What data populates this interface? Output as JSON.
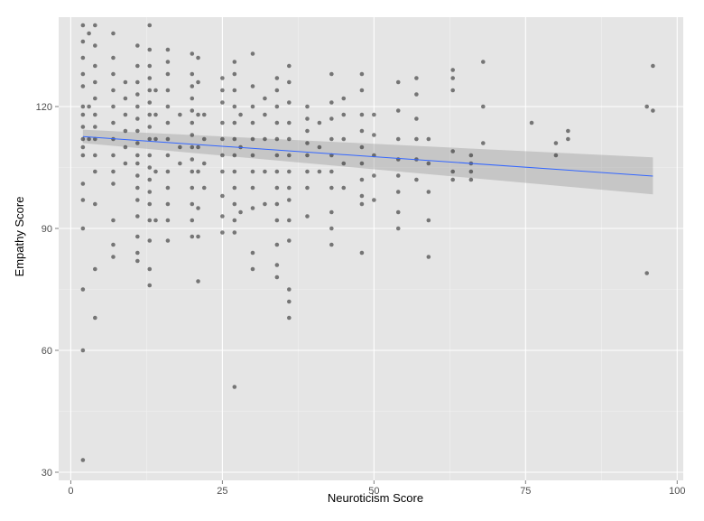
{
  "chart_data": {
    "type": "scatter",
    "title": "",
    "xlabel": "Neuroticism Score",
    "ylabel": "Empathy Score",
    "xlim": [
      -2,
      101
    ],
    "ylim": [
      28,
      142
    ],
    "x_ticks": [
      0,
      25,
      50,
      75,
      100
    ],
    "y_ticks": [
      30,
      60,
      90,
      120
    ],
    "x_tick_labels": [
      "0",
      "25",
      "50",
      "75",
      "100"
    ],
    "y_tick_labels": [
      "30",
      "60",
      "90",
      "120"
    ],
    "grid": true,
    "legend": "none",
    "colors": {
      "panel": "#e5e5e5",
      "grid_major": "#ffffff",
      "grid_minor": "#f2f2f2",
      "points": "#1a1a1a",
      "fit_line": "#3366ff",
      "ribbon": "#999999"
    },
    "fit": {
      "method": "linear",
      "x": [
        2,
        96
      ],
      "y": [
        112.6,
        102.9
      ],
      "ci_lower": [
        111.0,
        98.4
      ],
      "ci_upper": [
        114.3,
        107.5
      ]
    },
    "points": [
      [
        2,
        33
      ],
      [
        2,
        60
      ],
      [
        2,
        75
      ],
      [
        2,
        90
      ],
      [
        2,
        97
      ],
      [
        2,
        101
      ],
      [
        2,
        108
      ],
      [
        2,
        110
      ],
      [
        2,
        112
      ],
      [
        2,
        115
      ],
      [
        2,
        118
      ],
      [
        2,
        120
      ],
      [
        2,
        125
      ],
      [
        2,
        128
      ],
      [
        2,
        132
      ],
      [
        2,
        136
      ],
      [
        2,
        140
      ],
      [
        3,
        112
      ],
      [
        3,
        120
      ],
      [
        3,
        138
      ],
      [
        4,
        68
      ],
      [
        4,
        80
      ],
      [
        4,
        96
      ],
      [
        4,
        104
      ],
      [
        4,
        108
      ],
      [
        4,
        112
      ],
      [
        4,
        115
      ],
      [
        4,
        118
      ],
      [
        4,
        122
      ],
      [
        4,
        126
      ],
      [
        4,
        130
      ],
      [
        4,
        135
      ],
      [
        4,
        140
      ],
      [
        7,
        83
      ],
      [
        7,
        86
      ],
      [
        7,
        92
      ],
      [
        7,
        101
      ],
      [
        7,
        104
      ],
      [
        7,
        108
      ],
      [
        7,
        112
      ],
      [
        7,
        116
      ],
      [
        7,
        120
      ],
      [
        7,
        124
      ],
      [
        7,
        128
      ],
      [
        7,
        132
      ],
      [
        7,
        138
      ],
      [
        9,
        106
      ],
      [
        9,
        110
      ],
      [
        9,
        114
      ],
      [
        9,
        118
      ],
      [
        9,
        122
      ],
      [
        9,
        126
      ],
      [
        11,
        82
      ],
      [
        11,
        84
      ],
      [
        11,
        88
      ],
      [
        11,
        93
      ],
      [
        11,
        97
      ],
      [
        11,
        100
      ],
      [
        11,
        103
      ],
      [
        11,
        106
      ],
      [
        11,
        108
      ],
      [
        11,
        111
      ],
      [
        11,
        114
      ],
      [
        11,
        117
      ],
      [
        11,
        120
      ],
      [
        11,
        123
      ],
      [
        11,
        126
      ],
      [
        11,
        130
      ],
      [
        11,
        135
      ],
      [
        13,
        76
      ],
      [
        13,
        80
      ],
      [
        13,
        87
      ],
      [
        13,
        92
      ],
      [
        13,
        96
      ],
      [
        13,
        99
      ],
      [
        13,
        102
      ],
      [
        13,
        105
      ],
      [
        13,
        108
      ],
      [
        13,
        112
      ],
      [
        13,
        115
      ],
      [
        13,
        118
      ],
      [
        13,
        121
      ],
      [
        13,
        124
      ],
      [
        13,
        127
      ],
      [
        13,
        130
      ],
      [
        13,
        134
      ],
      [
        13,
        140
      ],
      [
        14,
        92
      ],
      [
        14,
        104
      ],
      [
        14,
        112
      ],
      [
        14,
        118
      ],
      [
        14,
        124
      ],
      [
        16,
        87
      ],
      [
        16,
        92
      ],
      [
        16,
        96
      ],
      [
        16,
        100
      ],
      [
        16,
        104
      ],
      [
        16,
        108
      ],
      [
        16,
        112
      ],
      [
        16,
        116
      ],
      [
        16,
        120
      ],
      [
        16,
        124
      ],
      [
        16,
        128
      ],
      [
        16,
        131
      ],
      [
        16,
        134
      ],
      [
        18,
        106
      ],
      [
        18,
        110
      ],
      [
        18,
        118
      ],
      [
        20,
        88
      ],
      [
        20,
        92
      ],
      [
        20,
        96
      ],
      [
        20,
        100
      ],
      [
        20,
        104
      ],
      [
        20,
        107
      ],
      [
        20,
        110
      ],
      [
        20,
        113
      ],
      [
        20,
        116
      ],
      [
        20,
        119
      ],
      [
        20,
        122
      ],
      [
        20,
        125
      ],
      [
        20,
        128
      ],
      [
        20,
        133
      ],
      [
        21,
        77
      ],
      [
        21,
        88
      ],
      [
        21,
        95
      ],
      [
        21,
        104
      ],
      [
        21,
        110
      ],
      [
        21,
        118
      ],
      [
        21,
        126
      ],
      [
        21,
        132
      ],
      [
        22,
        100
      ],
      [
        22,
        106
      ],
      [
        22,
        112
      ],
      [
        22,
        118
      ],
      [
        25,
        89
      ],
      [
        25,
        93
      ],
      [
        25,
        98
      ],
      [
        25,
        104
      ],
      [
        25,
        108
      ],
      [
        25,
        112
      ],
      [
        25,
        116
      ],
      [
        25,
        121
      ],
      [
        25,
        124
      ],
      [
        25,
        127
      ],
      [
        27,
        51
      ],
      [
        27,
        89
      ],
      [
        27,
        92
      ],
      [
        27,
        96
      ],
      [
        27,
        100
      ],
      [
        27,
        104
      ],
      [
        27,
        108
      ],
      [
        27,
        112
      ],
      [
        27,
        116
      ],
      [
        27,
        120
      ],
      [
        27,
        124
      ],
      [
        27,
        128
      ],
      [
        27,
        131
      ],
      [
        28,
        94
      ],
      [
        28,
        110
      ],
      [
        28,
        118
      ],
      [
        30,
        80
      ],
      [
        30,
        84
      ],
      [
        30,
        95
      ],
      [
        30,
        100
      ],
      [
        30,
        104
      ],
      [
        30,
        108
      ],
      [
        30,
        112
      ],
      [
        30,
        116
      ],
      [
        30,
        120
      ],
      [
        30,
        125
      ],
      [
        30,
        133
      ],
      [
        32,
        96
      ],
      [
        32,
        104
      ],
      [
        32,
        112
      ],
      [
        32,
        118
      ],
      [
        32,
        122
      ],
      [
        34,
        78
      ],
      [
        34,
        81
      ],
      [
        34,
        86
      ],
      [
        34,
        92
      ],
      [
        34,
        96
      ],
      [
        34,
        100
      ],
      [
        34,
        104
      ],
      [
        34,
        108
      ],
      [
        34,
        112
      ],
      [
        34,
        116
      ],
      [
        34,
        120
      ],
      [
        34,
        124
      ],
      [
        34,
        127
      ],
      [
        36,
        68
      ],
      [
        36,
        72
      ],
      [
        36,
        75
      ],
      [
        36,
        87
      ],
      [
        36,
        92
      ],
      [
        36,
        97
      ],
      [
        36,
        100
      ],
      [
        36,
        104
      ],
      [
        36,
        108
      ],
      [
        36,
        112
      ],
      [
        36,
        116
      ],
      [
        36,
        121
      ],
      [
        36,
        126
      ],
      [
        36,
        130
      ],
      [
        39,
        93
      ],
      [
        39,
        100
      ],
      [
        39,
        104
      ],
      [
        39,
        108
      ],
      [
        39,
        111
      ],
      [
        39,
        114
      ],
      [
        39,
        117
      ],
      [
        39,
        120
      ],
      [
        41,
        104
      ],
      [
        41,
        110
      ],
      [
        41,
        116
      ],
      [
        43,
        86
      ],
      [
        43,
        90
      ],
      [
        43,
        94
      ],
      [
        43,
        100
      ],
      [
        43,
        104
      ],
      [
        43,
        108
      ],
      [
        43,
        112
      ],
      [
        43,
        117
      ],
      [
        43,
        121
      ],
      [
        43,
        128
      ],
      [
        45,
        100
      ],
      [
        45,
        106
      ],
      [
        45,
        112
      ],
      [
        45,
        118
      ],
      [
        45,
        122
      ],
      [
        48,
        84
      ],
      [
        48,
        96
      ],
      [
        48,
        98
      ],
      [
        48,
        102
      ],
      [
        48,
        106
      ],
      [
        48,
        110
      ],
      [
        48,
        114
      ],
      [
        48,
        118
      ],
      [
        48,
        124
      ],
      [
        48,
        128
      ],
      [
        50,
        97
      ],
      [
        50,
        103
      ],
      [
        50,
        108
      ],
      [
        50,
        113
      ],
      [
        50,
        118
      ],
      [
        54,
        90
      ],
      [
        54,
        94
      ],
      [
        54,
        99
      ],
      [
        54,
        103
      ],
      [
        54,
        107
      ],
      [
        54,
        112
      ],
      [
        54,
        119
      ],
      [
        54,
        126
      ],
      [
        57,
        102
      ],
      [
        57,
        107
      ],
      [
        57,
        112
      ],
      [
        57,
        117
      ],
      [
        57,
        123
      ],
      [
        57,
        127
      ],
      [
        59,
        83
      ],
      [
        59,
        92
      ],
      [
        59,
        99
      ],
      [
        59,
        106
      ],
      [
        59,
        112
      ],
      [
        63,
        102
      ],
      [
        63,
        104
      ],
      [
        63,
        109
      ],
      [
        63,
        124
      ],
      [
        63,
        127
      ],
      [
        63,
        129
      ],
      [
        66,
        102
      ],
      [
        66,
        104
      ],
      [
        66,
        106
      ],
      [
        66,
        108
      ],
      [
        68,
        111
      ],
      [
        68,
        120
      ],
      [
        68,
        131
      ],
      [
        76,
        116
      ],
      [
        80,
        108
      ],
      [
        80,
        111
      ],
      [
        82,
        112
      ],
      [
        82,
        114
      ],
      [
        95,
        79
      ],
      [
        95,
        120
      ],
      [
        96,
        119
      ],
      [
        96,
        130
      ]
    ]
  }
}
